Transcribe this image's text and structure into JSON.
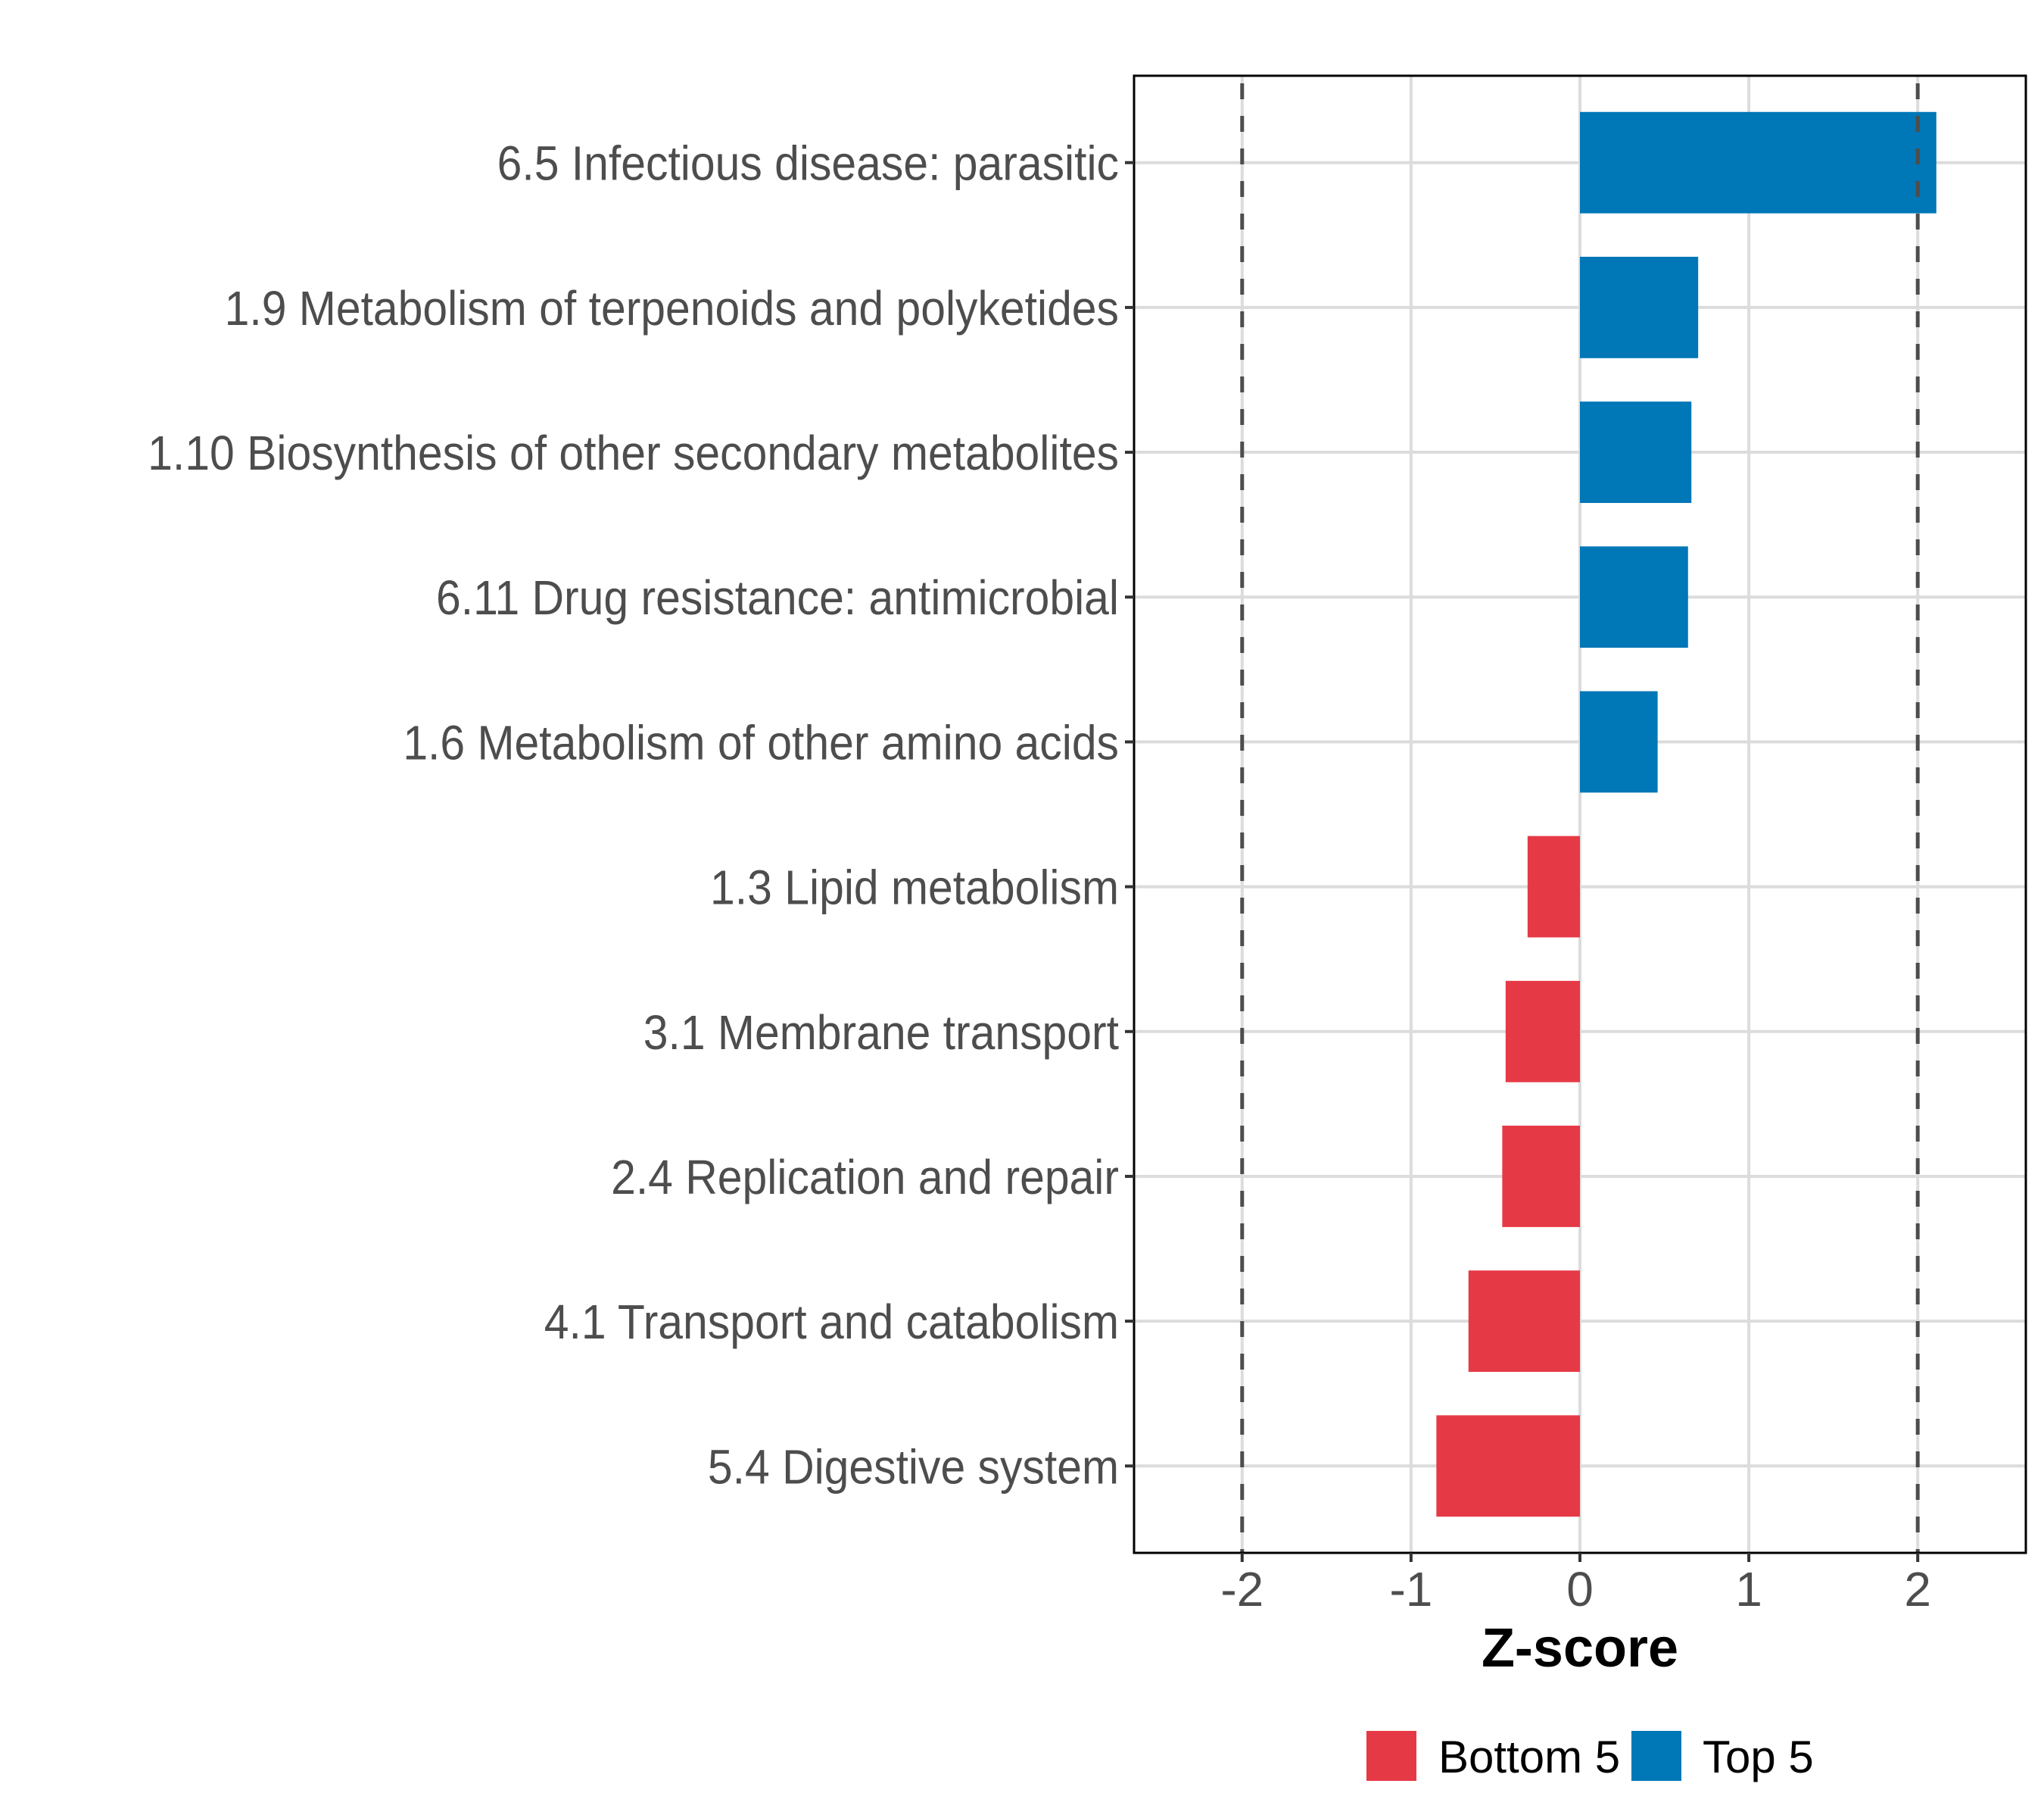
{
  "chart_data": {
    "type": "bar",
    "orientation": "horizontal",
    "title": "",
    "xlabel": "Z-score",
    "ylabel": "",
    "xlim": [
      -2.64,
      2.64
    ],
    "xticks": [
      -2,
      -1,
      0,
      1,
      2
    ],
    "xtick_labels": [
      "-2",
      "-1",
      "0",
      "1",
      "2"
    ],
    "grid": true,
    "reference_lines": [
      {
        "x": -2,
        "style": "dashed"
      },
      {
        "x": 2,
        "style": "dashed"
      }
    ],
    "categories": [
      "6.5 Infectious disease: parasitic",
      "1.9 Metabolism of terpenoids and polyketides",
      "1.10 Biosynthesis of other secondary metabolites",
      "6.11 Drug resistance: antimicrobial",
      "1.6 Metabolism of other amino acids",
      "1.3 Lipid metabolism",
      "3.1 Membrane transport",
      "2.4 Replication and repair",
      "4.1 Transport and catabolism",
      "5.4 Digestive system"
    ],
    "values": [
      2.11,
      0.7,
      0.66,
      0.64,
      0.46,
      -0.31,
      -0.44,
      -0.46,
      -0.66,
      -0.85
    ],
    "groups": [
      "Top 5",
      "Top 5",
      "Top 5",
      "Top 5",
      "Top 5",
      "Bottom 5",
      "Bottom 5",
      "Bottom 5",
      "Bottom 5",
      "Bottom 5"
    ],
    "legend": {
      "position": "bottom",
      "entries": [
        {
          "label": "Bottom 5",
          "color": "#E63946"
        },
        {
          "label": "Top 5",
          "color": "#0077B6"
        }
      ]
    },
    "colors": {
      "Bottom 5": "#E63946",
      "Top 5": "#0077B6",
      "grid": "#DCDCDC",
      "reference_line": "#4D4D4D",
      "axis_text": "#4D4D4D",
      "panel_border": "#000000"
    }
  }
}
